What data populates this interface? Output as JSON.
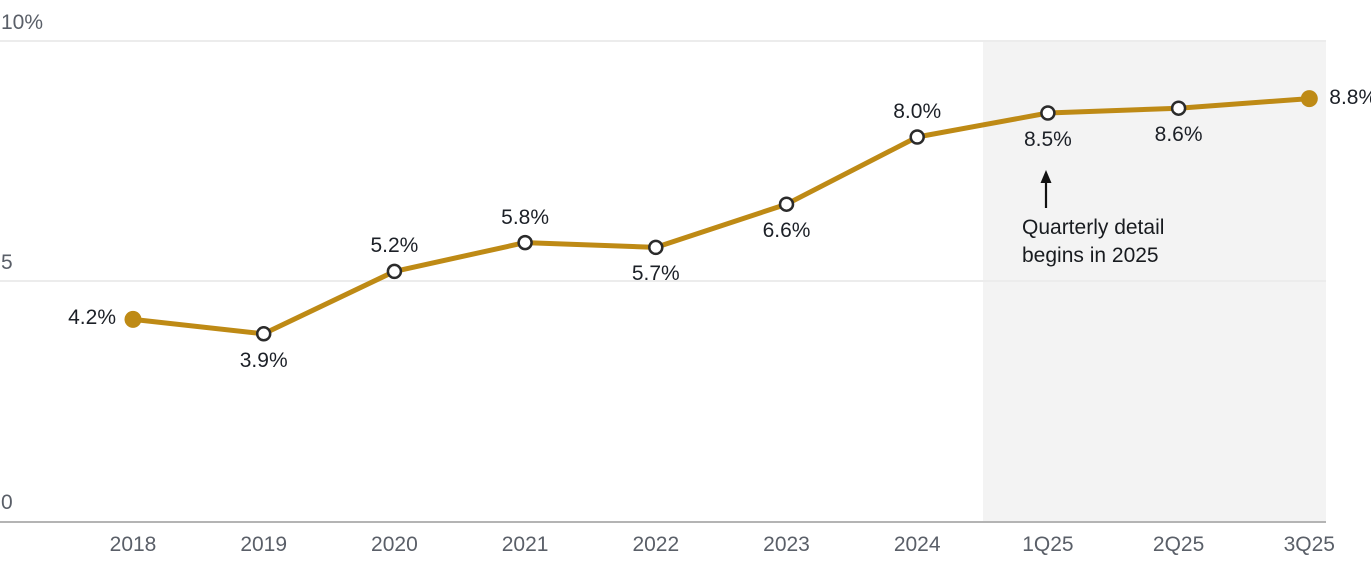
{
  "chart_data": {
    "type": "line",
    "title": "",
    "categories": [
      "2018",
      "2019",
      "2020",
      "2021",
      "2022",
      "2023",
      "2024",
      "1Q25",
      "2Q25",
      "3Q25"
    ],
    "values": [
      4.2,
      3.9,
      5.2,
      5.8,
      5.7,
      6.6,
      8.0,
      8.5,
      8.6,
      8.8
    ],
    "point_labels": [
      "4.2%",
      "3.9%",
      "5.2%",
      "5.8%",
      "5.7%",
      "6.6%",
      "8.0%",
      "8.5%",
      "8.6%",
      "8.8%"
    ],
    "label_placement": [
      "left",
      "below",
      "above",
      "above",
      "below",
      "below",
      "above",
      "below",
      "below",
      "right"
    ],
    "marker_filled": [
      true,
      false,
      false,
      false,
      false,
      false,
      false,
      false,
      false,
      true
    ],
    "y_ticks": [
      {
        "value": 0,
        "label": "0"
      },
      {
        "value": 5,
        "label": "5"
      },
      {
        "value": 10,
        "label": "10%"
      }
    ],
    "ylim": [
      0,
      10
    ],
    "grid": true,
    "legend": "none",
    "line_color": "#BE8A15",
    "marker_outline_color": "#2b2b2b",
    "marker_fill_open": "#ffffff",
    "shaded_region": {
      "color": "#f3f3f3",
      "covers_categories": [
        "1Q25",
        "2Q25",
        "3Q25"
      ],
      "starts_between": [
        "2024",
        "1Q25"
      ]
    },
    "annotation": {
      "line1": "Quarterly detail",
      "line2": "begins in 2025",
      "arrow": "up",
      "arrow_color": "#111111"
    }
  },
  "colors": {
    "gridline": "#ececec",
    "axis_line": "#b4b4b4",
    "tick_text": "#5a5f68",
    "data_label_text": "#1c2027",
    "annotation_text": "#181b1f",
    "background": "#ffffff"
  }
}
